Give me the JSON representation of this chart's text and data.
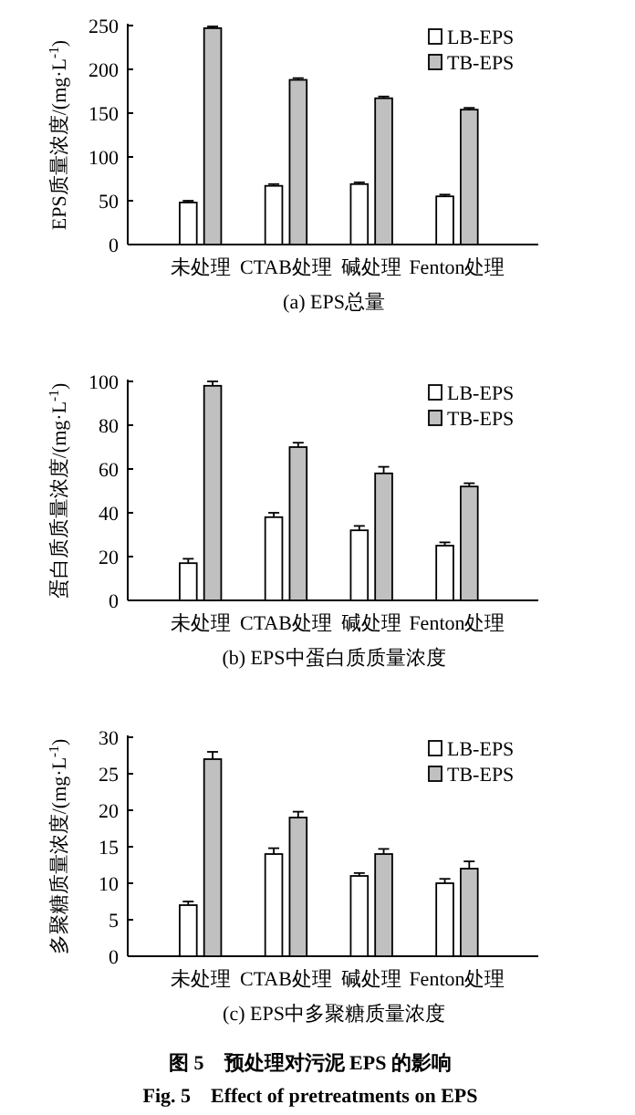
{
  "chart_data": [
    {
      "type": "bar",
      "title": "(a) EPS总量",
      "ylabel": "EPS质量浓度/(mg·L$^{-1}$)",
      "categories": [
        "未处理",
        "CTAB处理",
        "碱处理",
        "Fenton处理"
      ],
      "ylim": [
        0,
        250
      ],
      "yticks": [
        0,
        50,
        100,
        150,
        200,
        250
      ],
      "legend": "top right",
      "series": [
        {
          "name": "LB-EPS",
          "color": "#ffffff",
          "values": [
            48,
            67,
            69,
            55
          ],
          "errors": [
            2,
            2,
            2,
            2
          ]
        },
        {
          "name": "TB-EPS",
          "color": "#c0c0c0",
          "values": [
            247,
            188,
            167,
            154
          ],
          "errors": [
            2,
            2,
            2,
            2
          ]
        }
      ]
    },
    {
      "type": "bar",
      "title": "(b) EPS中蛋白质质量浓度",
      "ylabel": "蛋白质质量浓度/(mg·L$^{-1}$)",
      "categories": [
        "未处理",
        "CTAB处理",
        "碱处理",
        "Fenton处理"
      ],
      "ylim": [
        0,
        100
      ],
      "yticks": [
        0,
        20,
        40,
        60,
        80,
        100
      ],
      "legend": "top right",
      "series": [
        {
          "name": "LB-EPS",
          "color": "#ffffff",
          "values": [
            17,
            38,
            32,
            25
          ],
          "errors": [
            2,
            2,
            2,
            1.5
          ]
        },
        {
          "name": "TB-EPS",
          "color": "#c0c0c0",
          "values": [
            98,
            70,
            58,
            52
          ],
          "errors": [
            2,
            2,
            3,
            1.5
          ]
        }
      ]
    },
    {
      "type": "bar",
      "title": "(c) EPS中多聚糖质量浓度",
      "ylabel": "多聚糖质量浓度/(mg·L$^{-1}$)",
      "categories": [
        "未处理",
        "CTAB处理",
        "碱处理",
        "Fenton处理"
      ],
      "ylim": [
        0,
        30
      ],
      "yticks": [
        0,
        5,
        10,
        15,
        20,
        25,
        30
      ],
      "legend": "top right",
      "annotations": [
        "图 5　预处理对污泥 EPS 的影响",
        "Fig. 5　Effect of pretreatments on EPS"
      ],
      "series": [
        {
          "name": "LB-EPS",
          "color": "#ffffff",
          "values": [
            7,
            14,
            11,
            10
          ],
          "errors": [
            0.5,
            0.8,
            0.4,
            0.6
          ]
        },
        {
          "name": "TB-EPS",
          "color": "#c0c0c0",
          "values": [
            27,
            19,
            14,
            12
          ],
          "errors": [
            1,
            0.8,
            0.7,
            1
          ]
        }
      ]
    }
  ]
}
